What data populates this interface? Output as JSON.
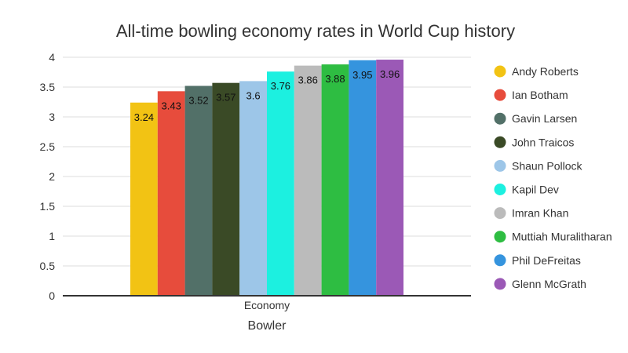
{
  "chart_data": {
    "type": "bar",
    "title": "All-time bowling economy rates in World Cup history",
    "xlabel": "Bowler",
    "ylabel": "",
    "categories": [
      "Economy"
    ],
    "ylim": [
      0,
      4
    ],
    "yticks": [
      "0",
      "0.5",
      "1",
      "1.5",
      "2",
      "2.5",
      "3",
      "3.5",
      "4"
    ],
    "grid": true,
    "legend_position": "right",
    "series": [
      {
        "name": "Andy Roberts",
        "values": [
          3.24
        ],
        "label": "3.24",
        "color": "#f2c314"
      },
      {
        "name": "Ian Botham",
        "values": [
          3.43
        ],
        "label": "3.43",
        "color": "#e74c3c"
      },
      {
        "name": "Gavin Larsen",
        "values": [
          3.52
        ],
        "label": "3.52",
        "color": "#527068"
      },
      {
        "name": "John Traicos",
        "values": [
          3.57
        ],
        "label": "3.57",
        "color": "#3a4a26"
      },
      {
        "name": "Shaun Pollock",
        "values": [
          3.6
        ],
        "label": "3.6",
        "color": "#9dc6e8"
      },
      {
        "name": "Kapil Dev",
        "values": [
          3.76
        ],
        "label": "3.76",
        "color": "#1cf0e0"
      },
      {
        "name": "Imran Khan",
        "values": [
          3.86
        ],
        "label": "3.86",
        "color": "#bbbbbb"
      },
      {
        "name": "Muttiah Muralitharan",
        "values": [
          3.88
        ],
        "label": "3.88",
        "color": "#2ebd42"
      },
      {
        "name": "Phil DeFreitas",
        "values": [
          3.95
        ],
        "label": "3.95",
        "color": "#3594de"
      },
      {
        "name": "Glenn McGrath",
        "values": [
          3.96
        ],
        "label": "3.96",
        "color": "#9b59b6"
      }
    ]
  }
}
